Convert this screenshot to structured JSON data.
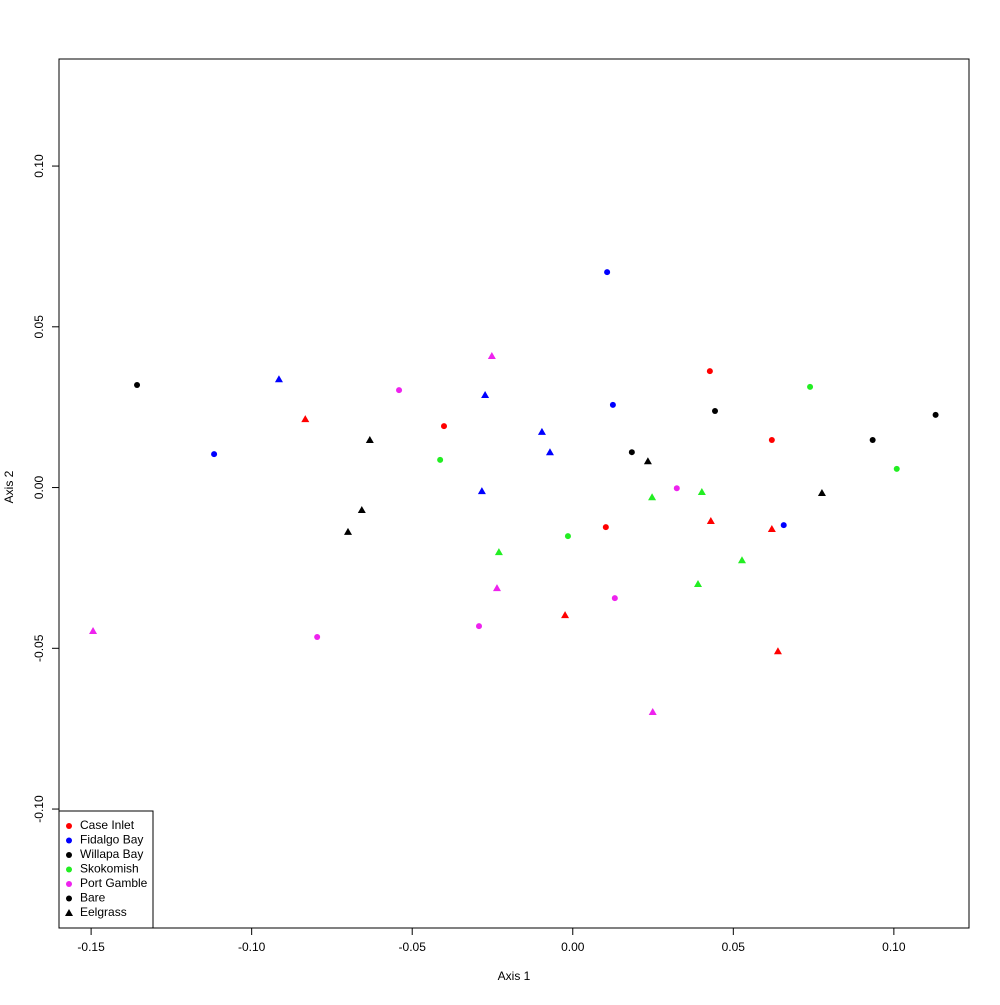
{
  "chart_data": {
    "type": "scatter",
    "x_label": "Axis 1",
    "y_label": "Axis 2",
    "xlim": [
      -0.16,
      0.1234
    ],
    "ylim": [
      -0.137,
      0.1333
    ],
    "xticks": [
      -0.15,
      {
        "value": -0.1,
        "label": "-0.10"
      },
      -0.05,
      {
        "value": 0,
        "label": "0.00"
      },
      0.05,
      {
        "value": 0.1,
        "label": "0.10"
      }
    ],
    "yticks": [
      {
        "value": -0.1,
        "label": "-0.10"
      },
      -0.05,
      {
        "value": 0,
        "label": "0.00"
      },
      0.05,
      {
        "value": 0.1,
        "label": "0.10"
      }
    ],
    "legend_position": "bottom-left",
    "series": [
      {
        "name": "Case Inlet",
        "color": "#ff0000",
        "x": [
          0.0427,
          -0.0401,
          0.062,
          0.0103,
          -0.0833,
          0.043,
          0.062,
          -0.0024,
          0.0639
        ],
        "values": [
          0.0362,
          0.0191,
          0.0148,
          -0.0123,
          0.0213,
          -0.0104,
          -0.0129,
          -0.0397,
          -0.0509
        ],
        "markers": [
          "circle",
          "circle",
          "circle",
          "circle",
          "triangle",
          "triangle",
          "triangle",
          "triangle",
          "triangle"
        ]
      },
      {
        "name": "Fidalgo Bay",
        "color": "#0000ff",
        "x": [
          0.0107,
          0.0125,
          -0.1117,
          0.0657,
          -0.0915,
          -0.0273,
          -0.0096,
          -0.0071,
          -0.0283
        ],
        "values": [
          0.067,
          0.0257,
          0.0104,
          -0.0117,
          0.0337,
          0.0288,
          0.0173,
          0.011,
          -0.0011
        ],
        "markers": [
          "circle",
          "circle",
          "circle",
          "circle",
          "triangle",
          "triangle",
          "triangle",
          "triangle",
          "triangle"
        ]
      },
      {
        "name": "Willapa Bay",
        "color": "#000000",
        "x": [
          -0.1357,
          0.0443,
          0.113,
          0.0934,
          0.0184,
          -0.0632,
          0.0234,
          0.0776,
          -0.0657,
          -0.07
        ],
        "values": [
          0.0319,
          0.0238,
          0.0226,
          0.0148,
          0.011,
          0.0148,
          0.0082,
          -0.0017,
          -0.007,
          -0.0138
        ],
        "markers": [
          "circle",
          "circle",
          "circle",
          "circle",
          "circle",
          "triangle",
          "triangle",
          "triangle",
          "triangle",
          "triangle"
        ]
      },
      {
        "name": "Skokomish",
        "color": "#22ee22",
        "x": [
          0.0739,
          -0.0413,
          0.1009,
          -0.0015,
          0.0247,
          0.0402,
          -0.023,
          0.0527,
          0.039
        ],
        "values": [
          0.0313,
          0.0086,
          0.0058,
          -0.0151,
          -0.003,
          -0.0014,
          -0.0201,
          -0.0226,
          -0.03
        ],
        "markers": [
          "circle",
          "circle",
          "circle",
          "circle",
          "triangle",
          "triangle",
          "triangle",
          "triangle",
          "triangle"
        ]
      },
      {
        "name": "Port Gamble",
        "color": "#ee22ee",
        "x": [
          -0.0541,
          0.0324,
          0.0131,
          -0.0292,
          -0.0796,
          -0.0252,
          -0.0236,
          -0.1494,
          0.0249
        ],
        "values": [
          0.0303,
          -0.0002,
          -0.0344,
          -0.0431,
          -0.0465,
          0.0409,
          -0.0313,
          -0.0446,
          -0.0698
        ],
        "markers": [
          "circle",
          "circle",
          "circle",
          "circle",
          "circle",
          "triangle",
          "triangle",
          "triangle",
          "triangle"
        ]
      }
    ],
    "marker_legend": [
      {
        "name": "Bare",
        "marker": "circle",
        "color": "#000000"
      },
      {
        "name": "Eelgrass",
        "marker": "triangle",
        "color": "#000000"
      }
    ]
  }
}
